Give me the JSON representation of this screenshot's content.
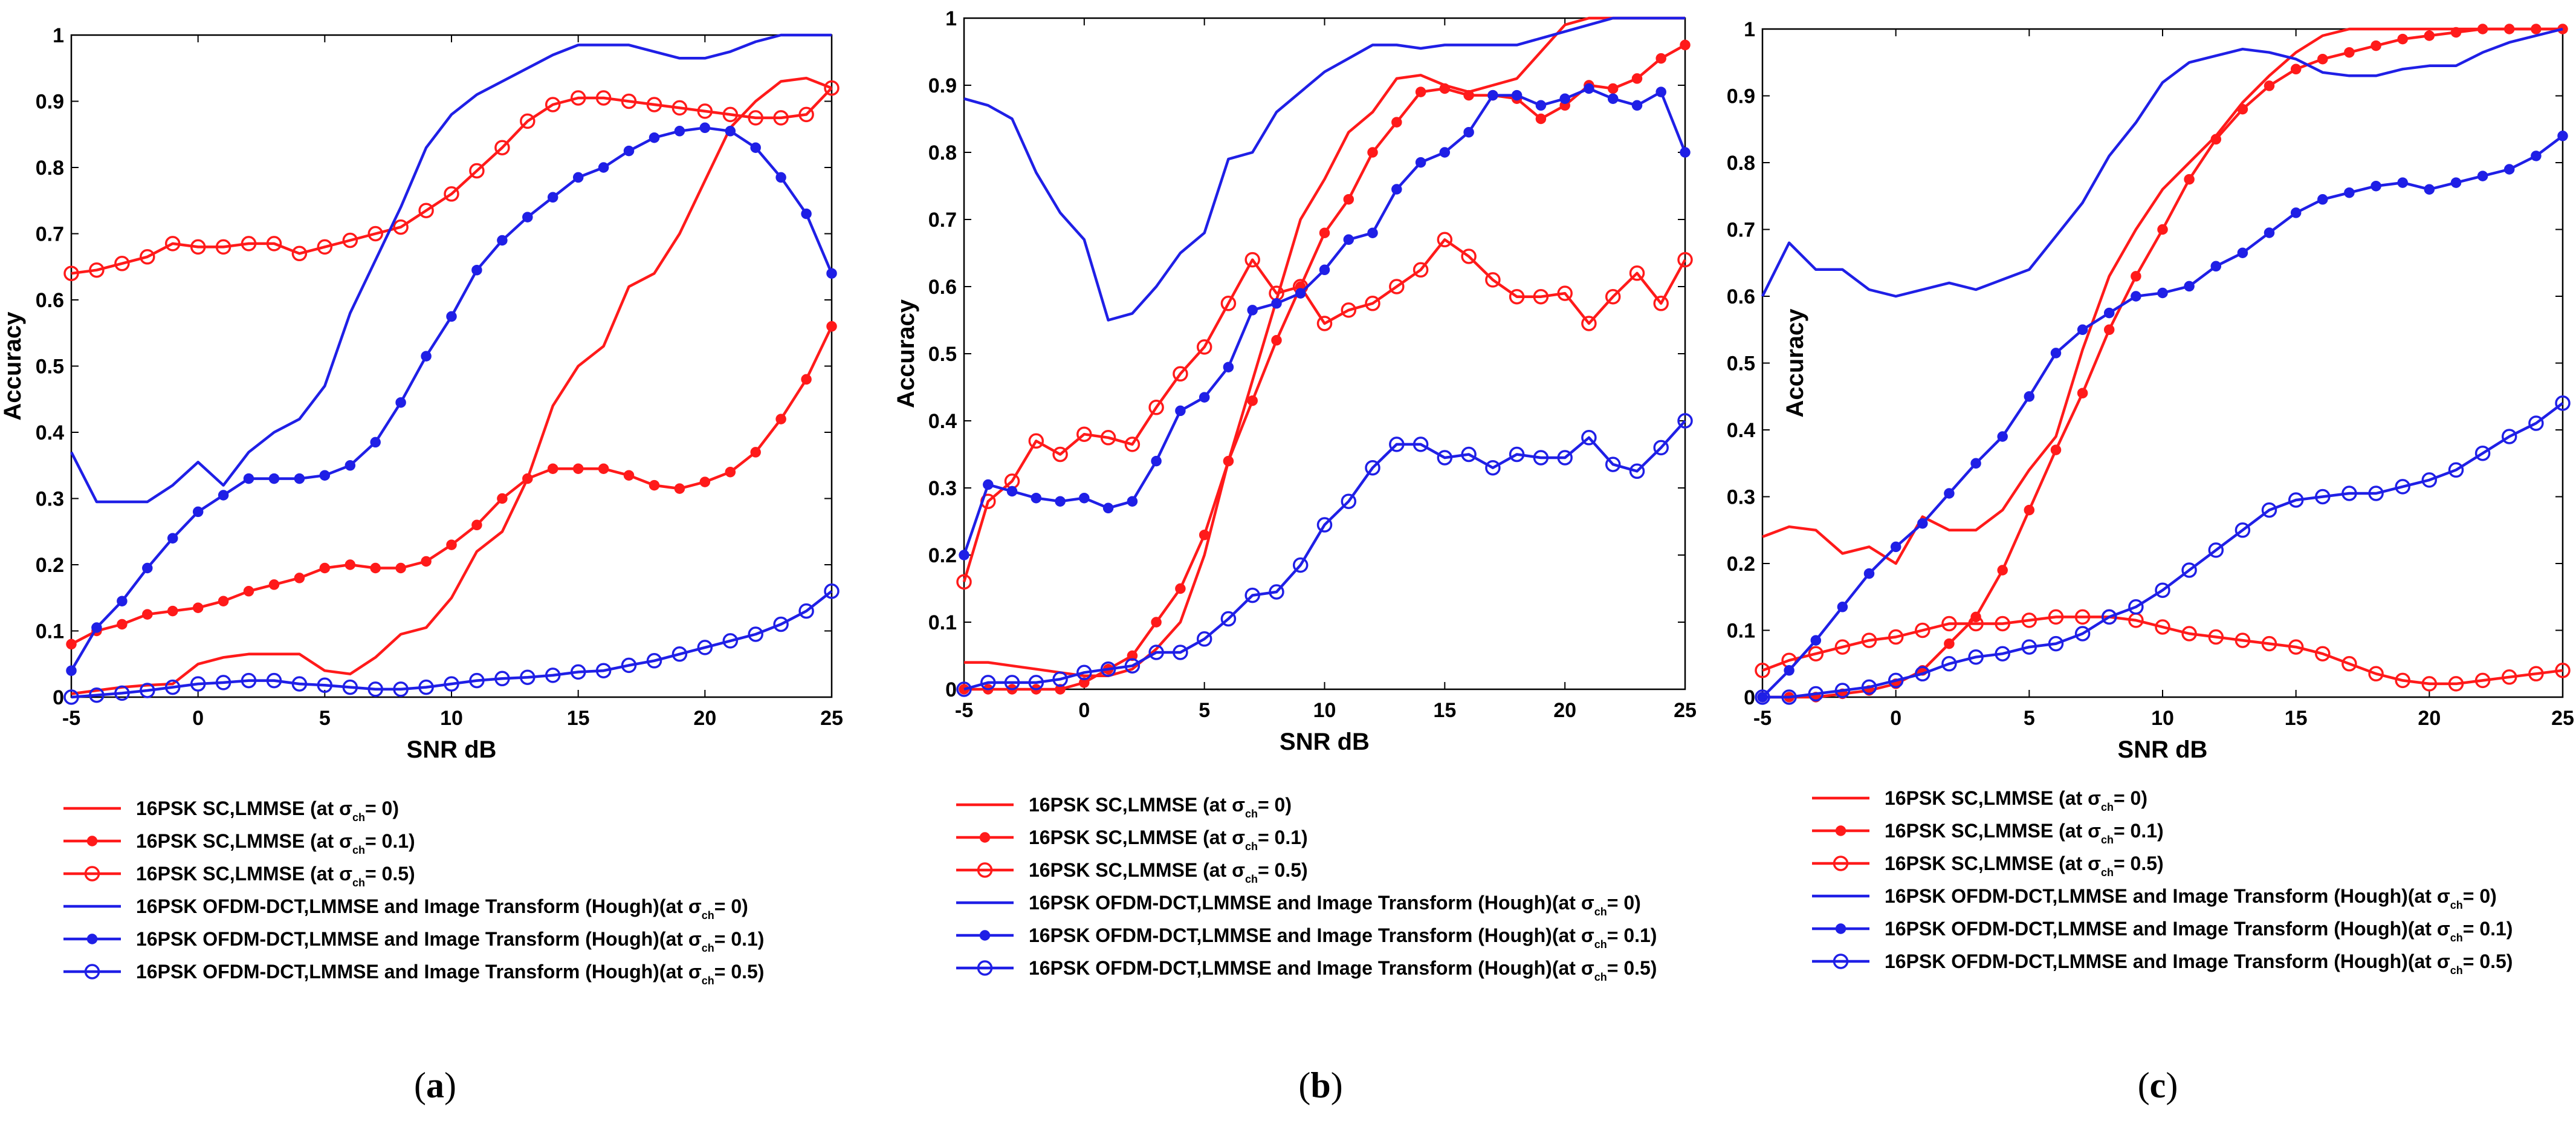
{
  "colors": {
    "red": "#ff1a1a",
    "blue": "#1f1fe6",
    "axis": "#000000"
  },
  "legend_labels": [
    "16PSK SC,LMMSE (at σ",
    "16PSK SC,LMMSE (at σ",
    "16PSK SC,LMMSE (at σ",
    "16PSK OFDM-DCT,LMMSE and Image Transform (Hough)(at σ",
    "16PSK OFDM-DCT,LMMSE and Image Transform (Hough)(at σ",
    "16PSK OFDM-DCT,LMMSE and Image Transform (Hough)(at σ"
  ],
  "legend_subscript": "ch",
  "legend_suffixes": [
    "= 0)",
    "= 0.1)",
    "= 0.5)",
    "= 0)",
    "= 0.1)",
    "= 0.5)"
  ],
  "chart_data": [
    {
      "type": "line",
      "caption": "a",
      "xlabel": "SNR dB",
      "ylabel": "Accuracy",
      "xlim": [
        -5,
        25
      ],
      "ylim": [
        0,
        1
      ],
      "xticks": [
        -5,
        0,
        5,
        10,
        15,
        20,
        25
      ],
      "yticks": [
        0,
        0.1,
        0.2,
        0.3,
        0.4,
        0.5,
        0.6,
        0.7,
        0.8,
        0.9,
        1
      ],
      "ytick_labels": [
        "0",
        "0.1",
        "0.2",
        "0.3",
        "0.4",
        "0.5",
        "0.6",
        "0.7",
        "0.8",
        "0.9",
        "1"
      ],
      "x": [
        -5,
        -4,
        -3,
        -2,
        -1,
        0,
        1,
        2,
        3,
        4,
        5,
        6,
        7,
        8,
        9,
        10,
        11,
        12,
        13,
        14,
        15,
        16,
        17,
        18,
        19,
        20,
        21,
        22,
        23,
        24,
        25
      ],
      "series": [
        {
          "name": "16PSK SC,LMMSE (at σch= 0)",
          "color": "red",
          "marker": "none",
          "values": [
            0.005,
            0.01,
            0.015,
            0.018,
            0.02,
            0.05,
            0.06,
            0.065,
            0.065,
            0.065,
            0.04,
            0.035,
            0.06,
            0.095,
            0.105,
            0.15,
            0.22,
            0.25,
            0.33,
            0.44,
            0.5,
            0.53,
            0.62,
            0.64,
            0.7,
            0.78,
            0.86,
            0.9,
            0.93,
            0.935,
            0.92
          ]
        },
        {
          "name": "16PSK SC,LMMSE (at σch= 0.1)",
          "color": "red",
          "marker": "dot",
          "values": [
            0.08,
            0.1,
            0.11,
            0.125,
            0.13,
            0.135,
            0.145,
            0.16,
            0.17,
            0.18,
            0.195,
            0.2,
            0.195,
            0.195,
            0.205,
            0.23,
            0.26,
            0.3,
            0.33,
            0.345,
            0.345,
            0.345,
            0.335,
            0.32,
            0.315,
            0.325,
            0.34,
            0.37,
            0.42,
            0.48,
            0.56
          ]
        },
        {
          "name": "16PSK SC,LMMSE (at σch= 0.5)",
          "color": "red",
          "marker": "circle",
          "values": [
            0.64,
            0.645,
            0.655,
            0.665,
            0.685,
            0.68,
            0.68,
            0.685,
            0.685,
            0.67,
            0.68,
            0.69,
            0.7,
            0.71,
            0.735,
            0.76,
            0.795,
            0.83,
            0.87,
            0.895,
            0.905,
            0.905,
            0.9,
            0.895,
            0.89,
            0.885,
            0.88,
            0.875,
            0.875,
            0.88,
            0.92
          ]
        },
        {
          "name": "16PSK OFDM-DCT,LMMSE and Image Transform (Hough)(at σch= 0)",
          "color": "blue",
          "marker": "none",
          "values": [
            0.37,
            0.295,
            0.295,
            0.295,
            0.32,
            0.355,
            0.32,
            0.37,
            0.4,
            0.42,
            0.47,
            0.58,
            0.66,
            0.74,
            0.83,
            0.88,
            0.91,
            0.93,
            0.95,
            0.97,
            0.985,
            0.985,
            0.985,
            0.975,
            0.965,
            0.965,
            0.975,
            0.99,
            1.0,
            1.0,
            1.0
          ]
        },
        {
          "name": "16PSK OFDM-DCT,LMMSE and Image Transform (Hough)(at σch= 0.1)",
          "color": "blue",
          "marker": "dot",
          "values": [
            0.04,
            0.105,
            0.145,
            0.195,
            0.24,
            0.28,
            0.305,
            0.33,
            0.33,
            0.33,
            0.335,
            0.35,
            0.385,
            0.445,
            0.515,
            0.575,
            0.645,
            0.69,
            0.725,
            0.755,
            0.785,
            0.8,
            0.825,
            0.845,
            0.855,
            0.86,
            0.855,
            0.83,
            0.785,
            0.73,
            0.64
          ]
        },
        {
          "name": "16PSK OFDM-DCT,LMMSE and Image Transform (Hough)(at σch= 0.5)",
          "color": "blue",
          "marker": "circle",
          "values": [
            0.0,
            0.003,
            0.006,
            0.01,
            0.015,
            0.02,
            0.022,
            0.025,
            0.025,
            0.02,
            0.018,
            0.015,
            0.012,
            0.012,
            0.015,
            0.02,
            0.025,
            0.028,
            0.03,
            0.033,
            0.038,
            0.04,
            0.048,
            0.055,
            0.065,
            0.075,
            0.085,
            0.095,
            0.11,
            0.13,
            0.16
          ]
        }
      ]
    },
    {
      "type": "line",
      "caption": "b",
      "xlabel": "SNR dB",
      "ylabel": "Accuracy",
      "xlim": [
        -5,
        25
      ],
      "ylim": [
        0,
        1
      ],
      "xticks": [
        -5,
        0,
        5,
        10,
        15,
        20,
        25
      ],
      "yticks": [
        0,
        0.1,
        0.2,
        0.3,
        0.4,
        0.5,
        0.6,
        0.7,
        0.8,
        0.9,
        1
      ],
      "ytick_labels": [
        "0",
        "0.1",
        "0.2",
        "0.3",
        "0.4",
        "0.5",
        "0.6",
        "0.7",
        "0.8",
        "0.9",
        "1"
      ],
      "x": [
        -5,
        -4,
        -3,
        -2,
        -1,
        0,
        1,
        2,
        3,
        4,
        5,
        6,
        7,
        8,
        9,
        10,
        11,
        12,
        13,
        14,
        15,
        16,
        17,
        18,
        19,
        20,
        21,
        22,
        23,
        24,
        25
      ],
      "series": [
        {
          "name": "16PSK SC,LMMSE (at σch= 0)",
          "color": "red",
          "marker": "none",
          "values": [
            0.04,
            0.04,
            0.035,
            0.03,
            0.025,
            0.02,
            0.02,
            0.03,
            0.06,
            0.1,
            0.2,
            0.34,
            0.46,
            0.58,
            0.7,
            0.76,
            0.83,
            0.86,
            0.91,
            0.915,
            0.9,
            0.89,
            0.9,
            0.91,
            0.95,
            0.99,
            1.0,
            1.0,
            1.0,
            1.0,
            1.0
          ]
        },
        {
          "name": "16PSK SC,LMMSE (at σch= 0.1)",
          "color": "red",
          "marker": "dot",
          "values": [
            0.0,
            0.0,
            0.0,
            0.0,
            0.0,
            0.01,
            0.03,
            0.05,
            0.1,
            0.15,
            0.23,
            0.34,
            0.43,
            0.52,
            0.6,
            0.68,
            0.73,
            0.8,
            0.845,
            0.89,
            0.895,
            0.885,
            0.885,
            0.88,
            0.85,
            0.87,
            0.9,
            0.895,
            0.91,
            0.94,
            0.96
          ]
        },
        {
          "name": "16PSK SC,LMMSE (at σch= 0.5)",
          "color": "red",
          "marker": "circle",
          "values": [
            0.16,
            0.28,
            0.31,
            0.37,
            0.35,
            0.38,
            0.375,
            0.365,
            0.42,
            0.47,
            0.51,
            0.575,
            0.64,
            0.59,
            0.6,
            0.545,
            0.565,
            0.575,
            0.6,
            0.625,
            0.67,
            0.645,
            0.61,
            0.585,
            0.585,
            0.59,
            0.545,
            0.585,
            0.62,
            0.575,
            0.64
          ]
        },
        {
          "name": "16PSK OFDM-DCT,LMMSE and Image Transform (Hough)(at σch= 0)",
          "color": "blue",
          "marker": "none",
          "values": [
            0.88,
            0.87,
            0.85,
            0.77,
            0.71,
            0.67,
            0.55,
            0.56,
            0.6,
            0.65,
            0.68,
            0.79,
            0.8,
            0.86,
            0.89,
            0.92,
            0.94,
            0.96,
            0.96,
            0.955,
            0.96,
            0.96,
            0.96,
            0.96,
            0.97,
            0.98,
            0.99,
            1.0,
            1.0,
            1.0,
            1.0
          ]
        },
        {
          "name": "16PSK OFDM-DCT,LMMSE and Image Transform (Hough)(at σch= 0.1)",
          "color": "blue",
          "marker": "dot",
          "values": [
            0.2,
            0.305,
            0.295,
            0.285,
            0.28,
            0.285,
            0.27,
            0.28,
            0.34,
            0.415,
            0.435,
            0.48,
            0.565,
            0.575,
            0.59,
            0.625,
            0.67,
            0.68,
            0.745,
            0.785,
            0.8,
            0.83,
            0.885,
            0.885,
            0.87,
            0.88,
            0.895,
            0.88,
            0.87,
            0.89,
            0.8
          ]
        },
        {
          "name": "16PSK OFDM-DCT,LMMSE and Image Transform (Hough)(at σch= 0.5)",
          "color": "blue",
          "marker": "circle",
          "values": [
            0.0,
            0.01,
            0.01,
            0.01,
            0.015,
            0.025,
            0.03,
            0.035,
            0.055,
            0.055,
            0.075,
            0.105,
            0.14,
            0.145,
            0.185,
            0.245,
            0.28,
            0.33,
            0.365,
            0.365,
            0.345,
            0.35,
            0.33,
            0.35,
            0.345,
            0.345,
            0.375,
            0.335,
            0.325,
            0.36,
            0.4
          ]
        }
      ]
    },
    {
      "type": "line",
      "caption": "c",
      "xlabel": "SNR dB",
      "ylabel": "Accuracy",
      "xlim": [
        -5,
        25
      ],
      "ylim": [
        0,
        1
      ],
      "xticks": [
        -5,
        0,
        5,
        10,
        15,
        20,
        25
      ],
      "yticks": [
        0,
        0.1,
        0.2,
        0.3,
        0.4,
        0.5,
        0.6,
        0.7,
        0.8,
        0.9,
        1
      ],
      "ytick_labels": [
        "0",
        "0.1",
        "0.2",
        "0.3",
        "0.4",
        "0.5",
        "0.6",
        "0.7",
        "0.8",
        "0.9",
        "1"
      ],
      "x": [
        -5,
        -4,
        -3,
        -2,
        -1,
        0,
        1,
        2,
        3,
        4,
        5,
        6,
        7,
        8,
        9,
        10,
        11,
        12,
        13,
        14,
        15,
        16,
        17,
        18,
        19,
        20,
        21,
        22,
        23,
        24,
        25
      ],
      "series": [
        {
          "name": "16PSK SC,LMMSE (at σch= 0)",
          "color": "red",
          "marker": "none",
          "values": [
            0.24,
            0.255,
            0.25,
            0.215,
            0.225,
            0.2,
            0.27,
            0.25,
            0.25,
            0.28,
            0.34,
            0.39,
            0.52,
            0.63,
            0.7,
            0.76,
            0.8,
            0.84,
            0.89,
            0.93,
            0.965,
            0.99,
            1.0,
            1.0,
            1.0,
            1.0,
            1.0,
            1.0,
            1.0,
            1.0,
            1.0
          ]
        },
        {
          "name": "16PSK SC,LMMSE (at σch= 0.1)",
          "color": "red",
          "marker": "dot",
          "values": [
            0.0,
            0.0,
            0.0,
            0.005,
            0.01,
            0.02,
            0.04,
            0.08,
            0.12,
            0.19,
            0.28,
            0.37,
            0.455,
            0.55,
            0.63,
            0.7,
            0.775,
            0.835,
            0.88,
            0.915,
            0.94,
            0.955,
            0.965,
            0.975,
            0.985,
            0.99,
            0.995,
            1.0,
            1.0,
            1.0,
            1.0
          ]
        },
        {
          "name": "16PSK SC,LMMSE (at σch= 0.5)",
          "color": "red",
          "marker": "circle",
          "values": [
            0.04,
            0.055,
            0.065,
            0.075,
            0.085,
            0.09,
            0.1,
            0.11,
            0.11,
            0.11,
            0.115,
            0.12,
            0.12,
            0.12,
            0.115,
            0.105,
            0.095,
            0.09,
            0.085,
            0.08,
            0.075,
            0.065,
            0.05,
            0.035,
            0.025,
            0.02,
            0.02,
            0.025,
            0.03,
            0.035,
            0.04
          ]
        },
        {
          "name": "16PSK OFDM-DCT,LMMSE and Image Transform (Hough)(at σch= 0)",
          "color": "blue",
          "marker": "none",
          "values": [
            0.6,
            0.68,
            0.64,
            0.64,
            0.61,
            0.6,
            0.61,
            0.62,
            0.61,
            0.625,
            0.64,
            0.69,
            0.74,
            0.81,
            0.86,
            0.92,
            0.95,
            0.96,
            0.97,
            0.965,
            0.955,
            0.935,
            0.93,
            0.93,
            0.94,
            0.945,
            0.945,
            0.965,
            0.98,
            0.99,
            1.0
          ]
        },
        {
          "name": "16PSK OFDM-DCT,LMMSE and Image Transform (Hough)(at σch= 0.1)",
          "color": "blue",
          "marker": "dot",
          "values": [
            0.0,
            0.04,
            0.085,
            0.135,
            0.185,
            0.225,
            0.26,
            0.305,
            0.35,
            0.39,
            0.45,
            0.515,
            0.55,
            0.575,
            0.6,
            0.605,
            0.615,
            0.645,
            0.665,
            0.695,
            0.725,
            0.745,
            0.755,
            0.765,
            0.77,
            0.76,
            0.77,
            0.78,
            0.79,
            0.81,
            0.84
          ]
        },
        {
          "name": "16PSK OFDM-DCT,LMMSE and Image Transform (Hough)(at σch= 0.5)",
          "color": "blue",
          "marker": "circle",
          "values": [
            0.0,
            0.0,
            0.005,
            0.01,
            0.015,
            0.025,
            0.035,
            0.05,
            0.06,
            0.065,
            0.075,
            0.08,
            0.095,
            0.12,
            0.135,
            0.16,
            0.19,
            0.22,
            0.25,
            0.28,
            0.295,
            0.3,
            0.305,
            0.305,
            0.315,
            0.325,
            0.34,
            0.365,
            0.39,
            0.41,
            0.44
          ]
        }
      ]
    }
  ]
}
